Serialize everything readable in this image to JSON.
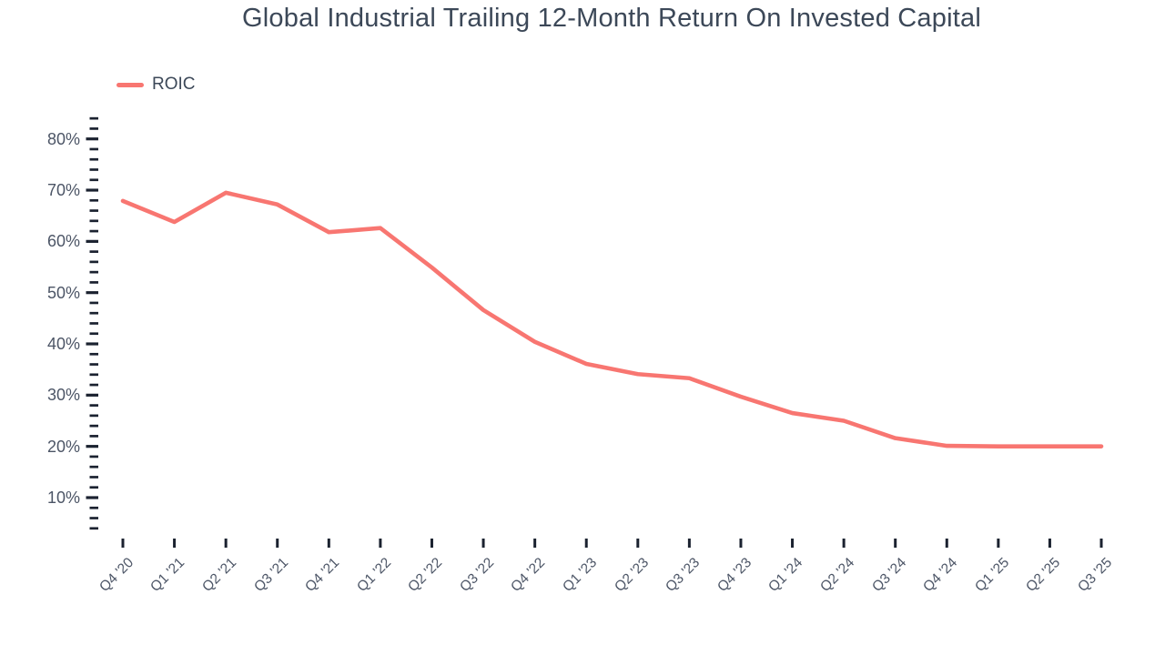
{
  "chart_data": {
    "type": "line",
    "title": "Global Industrial Trailing 12-Month Return On Invested Capital",
    "categories": [
      "Q4 '20",
      "Q1 '21",
      "Q2 '21",
      "Q3 '21",
      "Q4 '21",
      "Q1 '22",
      "Q2 '22",
      "Q3 '22",
      "Q4 '22",
      "Q1 '23",
      "Q2 '23",
      "Q3 '23",
      "Q4 '23",
      "Q1 '24",
      "Q2 '24",
      "Q3 '24",
      "Q4 '24",
      "Q1 '25",
      "Q2 '25",
      "Q3 '25"
    ],
    "series": [
      {
        "name": "ROIC",
        "values": [
          67.9,
          63.8,
          69.5,
          67.2,
          61.8,
          62.6,
          54.9,
          46.6,
          40.4,
          36.1,
          34.1,
          33.3,
          29.7,
          26.5,
          25.0,
          21.6,
          20.1,
          20.0,
          20.0,
          20.0
        ],
        "color": "#f87671"
      }
    ],
    "xlabel": "",
    "ylabel": "",
    "value_format": "percent",
    "ylim": [
      4,
      84
    ],
    "y_major_ticks": {
      "labels": [
        "80%",
        "70%",
        "60%",
        "50%",
        "40%",
        "30%",
        "20%",
        "10%"
      ],
      "values": [
        80,
        70,
        60,
        50,
        40,
        30,
        20,
        10
      ]
    },
    "y_minor_step": 2,
    "grid": false,
    "legend_position": "top-left"
  },
  "colors": {
    "line": "#f87671",
    "title_text": "#3c4858",
    "axis_label_text": "#4c5566",
    "tick_mark": "#1b2230",
    "background": "#ffffff"
  }
}
